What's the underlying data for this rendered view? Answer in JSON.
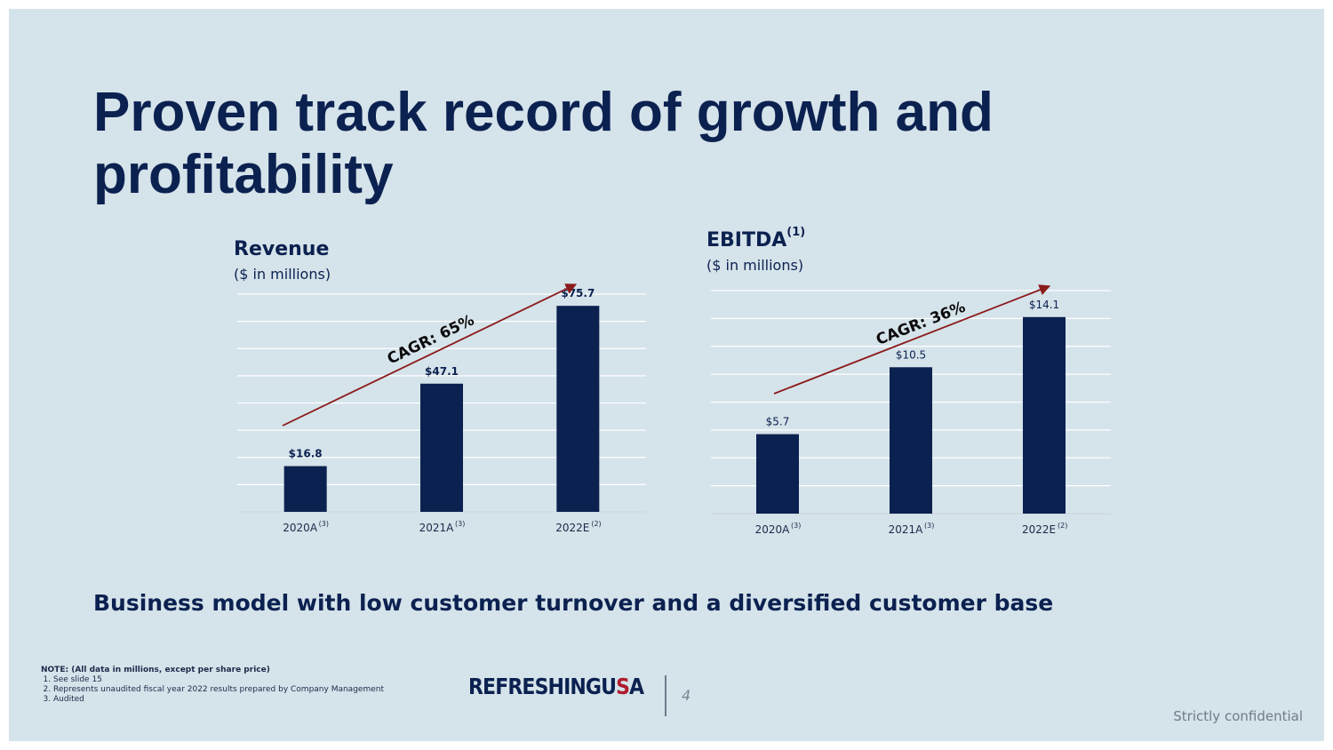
{
  "slide": {
    "title": "Proven track record of growth and profitability",
    "tagline": "Business model with low customer turnover and a diversified customer base",
    "confidential": "Strictly confidential",
    "page_number": "4"
  },
  "logo": {
    "refreshing": "REFRESHING",
    "usa_u": "U",
    "usa_s": "S",
    "usa_a": "A"
  },
  "notes": {
    "title": "NOTE: (All data in millions, except per share price)",
    "items": [
      "See slide 15",
      "Represents unaudited fiscal year 2022 results prepared by Company Management",
      "Audited"
    ]
  },
  "colors": {
    "bar": "#0b2150",
    "arrow": "#8b1a1a",
    "grid": "#ffffff"
  },
  "chart_data": [
    {
      "type": "bar",
      "title": "Revenue",
      "title_sup": "",
      "subtitle": "($ in millions)",
      "categories": [
        "2020A",
        "2021A",
        "2022E"
      ],
      "category_sups": [
        "(3)",
        "(3)",
        "(2)"
      ],
      "values": [
        16.8,
        47.1,
        75.7
      ],
      "value_labels": [
        "$16.8",
        "$47.1",
        "$75.7"
      ],
      "label_bold": true,
      "ylim": [
        0,
        80
      ],
      "grid_lines": 8,
      "annotation": "CAGR: 65%"
    },
    {
      "type": "bar",
      "title": "EBITDA",
      "title_sup": "(1)",
      "subtitle": "($ in millions)",
      "categories": [
        "2020A",
        "2021A",
        "2022E"
      ],
      "category_sups": [
        "(3)",
        "(3)",
        "(2)"
      ],
      "values": [
        5.7,
        10.5,
        14.1
      ],
      "value_labels": [
        "$5.7",
        "$10.5",
        "$14.1"
      ],
      "label_bold": false,
      "ylim": [
        0,
        16
      ],
      "grid_lines": 8,
      "annotation": "CAGR: 36%"
    }
  ]
}
